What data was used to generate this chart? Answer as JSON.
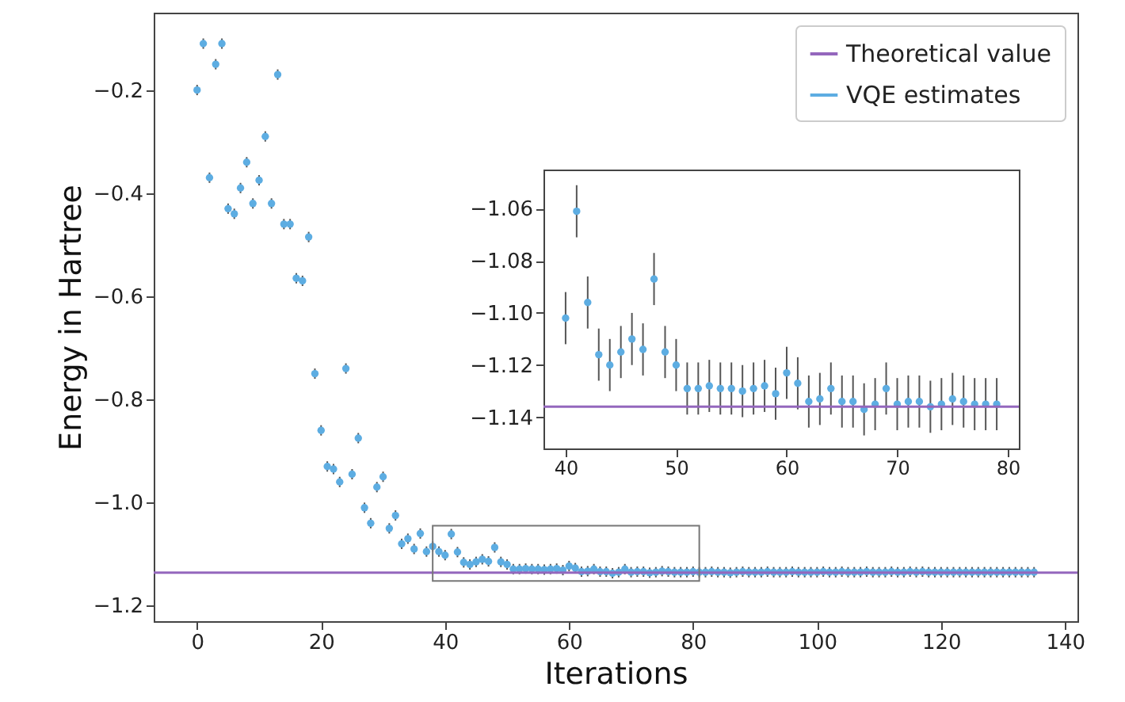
{
  "chart_data": [
    {
      "type": "scatter",
      "xlabel": "Iterations",
      "ylabel": "Energy in Hartree",
      "xlim": [
        -7,
        142
      ],
      "ylim": [
        -1.23,
        -0.05
      ],
      "xticks": [
        0,
        20,
        40,
        60,
        80,
        100,
        120,
        140
      ],
      "yticks": [
        -1.2,
        {
          "value": -1,
          "label": "−1.0"
        },
        -0.8,
        -0.6,
        -0.4,
        -0.2
      ],
      "grid": false,
      "legend": "top right",
      "marker": "circle",
      "x": [
        0,
        1,
        2,
        3,
        4,
        5,
        6,
        7,
        8,
        9,
        10,
        11,
        12,
        13,
        14,
        15,
        16,
        17,
        18,
        19,
        20,
        21,
        22,
        23,
        24,
        25,
        26,
        27,
        28,
        29,
        30,
        31,
        32,
        33,
        34,
        35,
        36,
        37,
        38,
        39,
        40,
        41,
        42,
        43,
        44,
        45,
        46,
        47,
        48,
        49,
        50,
        51,
        52,
        53,
        54,
        55,
        56,
        57,
        58,
        59,
        60,
        61,
        62,
        63,
        64,
        65,
        66,
        67,
        68,
        69,
        70,
        71,
        72,
        73,
        74,
        75,
        76,
        77,
        78,
        79,
        80,
        81,
        82,
        83,
        84,
        85,
        86,
        87,
        88,
        89,
        90,
        91,
        92,
        93,
        94,
        95,
        96,
        97,
        98,
        99,
        100,
        101,
        102,
        103,
        104,
        105,
        106,
        107,
        108,
        109,
        110,
        111,
        112,
        113,
        114,
        115,
        116,
        117,
        118,
        119,
        120,
        121,
        122,
        123,
        124,
        125,
        126,
        127,
        128,
        129,
        130,
        131,
        132,
        133,
        134,
        135
      ],
      "series": [
        {
          "name": "VQE estimates",
          "color": "#5dade2",
          "values": [
            -0.2,
            -0.11,
            -0.37,
            -0.15,
            -0.11,
            -0.43,
            -0.44,
            -0.39,
            -0.34,
            -0.42,
            -0.375,
            -0.29,
            -0.42,
            -0.17,
            -0.46,
            -0.46,
            -0.565,
            -0.57,
            -0.485,
            -0.75,
            -0.86,
            -0.93,
            -0.935,
            -0.96,
            -0.74,
            -0.945,
            -0.875,
            -1.01,
            -1.04,
            -0.97,
            -0.95,
            -1.05,
            -1.025,
            -1.08,
            -1.07,
            -1.09,
            -1.06,
            -1.095,
            -1.085,
            -1.095,
            -1.102,
            -1.061,
            -1.096,
            -1.116,
            -1.12,
            -1.115,
            -1.11,
            -1.114,
            -1.087,
            -1.115,
            -1.12,
            -1.129,
            -1.129,
            -1.128,
            -1.129,
            -1.129,
            -1.13,
            -1.129,
            -1.128,
            -1.131,
            -1.123,
            -1.127,
            -1.134,
            -1.133,
            -1.129,
            -1.134,
            -1.134,
            -1.137,
            -1.135,
            -1.129,
            -1.135,
            -1.134,
            -1.134,
            -1.136,
            -1.135,
            -1.133,
            -1.134,
            -1.135,
            -1.135,
            -1.135,
            -1.134,
            -1.135,
            -1.135,
            -1.134,
            -1.135,
            -1.135,
            -1.136,
            -1.135,
            -1.134,
            -1.135,
            -1.135,
            -1.135,
            -1.134,
            -1.135,
            -1.135,
            -1.135,
            -1.134,
            -1.135,
            -1.135,
            -1.135,
            -1.135,
            -1.134,
            -1.135,
            -1.135,
            -1.134,
            -1.135,
            -1.135,
            -1.135,
            -1.134,
            -1.135,
            -1.135,
            -1.135,
            -1.134,
            -1.135,
            -1.135,
            -1.134,
            -1.135,
            -1.134,
            -1.135,
            -1.135,
            -1.135,
            -1.135,
            -1.135,
            -1.135,
            -1.135,
            -1.135,
            -1.135,
            -1.135,
            -1.135,
            -1.135,
            -1.135,
            -1.135,
            -1.135,
            -1.135,
            -1.135,
            -1.135
          ],
          "errors": [
            0.01,
            0.01,
            0.01,
            0.01,
            0.01,
            0.01,
            0.01,
            0.01,
            0.01,
            0.01,
            0.01,
            0.01,
            0.01,
            0.01,
            0.01,
            0.01,
            0.01,
            0.01,
            0.01,
            0.01,
            0.01,
            0.01,
            0.01,
            0.01,
            0.01,
            0.01,
            0.01,
            0.01,
            0.01,
            0.01,
            0.01,
            0.01,
            0.01,
            0.01,
            0.01,
            0.01,
            0.01,
            0.01,
            0.01,
            0.01,
            0.01,
            0.01,
            0.01,
            0.01,
            0.01,
            0.01,
            0.01,
            0.01,
            0.01,
            0.01,
            0.01,
            0.01,
            0.01,
            0.01,
            0.01,
            0.01,
            0.01,
            0.01,
            0.01,
            0.01,
            0.01,
            0.01,
            0.01,
            0.01,
            0.01,
            0.01,
            0.01,
            0.01,
            0.01,
            0.01,
            0.01,
            0.01,
            0.01,
            0.01,
            0.01,
            0.01,
            0.01,
            0.01,
            0.01,
            0.01,
            0.01,
            0.01,
            0.01,
            0.01,
            0.01,
            0.01,
            0.01,
            0.01,
            0.01,
            0.01,
            0.01,
            0.01,
            0.01,
            0.01,
            0.01,
            0.01,
            0.01,
            0.01,
            0.01,
            0.01,
            0.01,
            0.01,
            0.01,
            0.01,
            0.01,
            0.01,
            0.01,
            0.01,
            0.01,
            0.01,
            0.01,
            0.01,
            0.01,
            0.01,
            0.01,
            0.01,
            0.01,
            0.01,
            0.01,
            0.01,
            0.01,
            0.01,
            0.01,
            0.01,
            0.01,
            0.01,
            0.01,
            0.01,
            0.01,
            0.01,
            0.01,
            0.01,
            0.01,
            0.01,
            0.01,
            0.01
          ]
        }
      ],
      "ref_lines": [
        {
          "axis": "y",
          "value": -1.136,
          "label": "Theoretical value",
          "color": "#9467bd"
        }
      ]
    },
    {
      "type": "scatter",
      "xlim": [
        38,
        81
      ],
      "ylim": [
        -1.152,
        -1.045
      ],
      "xticks": [
        40,
        50,
        60,
        70,
        80
      ],
      "yticks": [
        -1.14,
        -1.12,
        {
          "value": -1.1,
          "label": "−1.10"
        },
        -1.08,
        -1.06
      ],
      "grid": false,
      "marker": "circle",
      "x": [
        40,
        41,
        42,
        43,
        44,
        45,
        46,
        47,
        48,
        49,
        50,
        51,
        52,
        53,
        54,
        55,
        56,
        57,
        58,
        59,
        60,
        61,
        62,
        63,
        64,
        65,
        66,
        67,
        68,
        69,
        70,
        71,
        72,
        73,
        74,
        75,
        76,
        77,
        78,
        79
      ],
      "series": [
        {
          "color": "#5dade2",
          "values": [
            -1.102,
            -1.061,
            -1.096,
            -1.116,
            -1.12,
            -1.115,
            -1.11,
            -1.114,
            -1.087,
            -1.115,
            -1.12,
            -1.129,
            -1.129,
            -1.128,
            -1.129,
            -1.129,
            -1.13,
            -1.129,
            -1.128,
            -1.131,
            -1.123,
            -1.127,
            -1.134,
            -1.133,
            -1.129,
            -1.134,
            -1.134,
            -1.137,
            -1.135,
            -1.129,
            -1.135,
            -1.134,
            -1.134,
            -1.136,
            -1.135,
            -1.133,
            -1.134,
            -1.135,
            -1.135,
            -1.135
          ],
          "errors": [
            0.01,
            0.01,
            0.01,
            0.01,
            0.01,
            0.01,
            0.01,
            0.01,
            0.01,
            0.01,
            0.01,
            0.01,
            0.01,
            0.01,
            0.01,
            0.01,
            0.01,
            0.01,
            0.01,
            0.01,
            0.01,
            0.01,
            0.01,
            0.01,
            0.01,
            0.01,
            0.01,
            0.01,
            0.01,
            0.01,
            0.01,
            0.01,
            0.01,
            0.01,
            0.01,
            0.01,
            0.01,
            0.01,
            0.01,
            0.01
          ]
        }
      ],
      "ref_lines": [
        {
          "axis": "y",
          "value": -1.136,
          "color": "#9467bd"
        }
      ]
    }
  ]
}
